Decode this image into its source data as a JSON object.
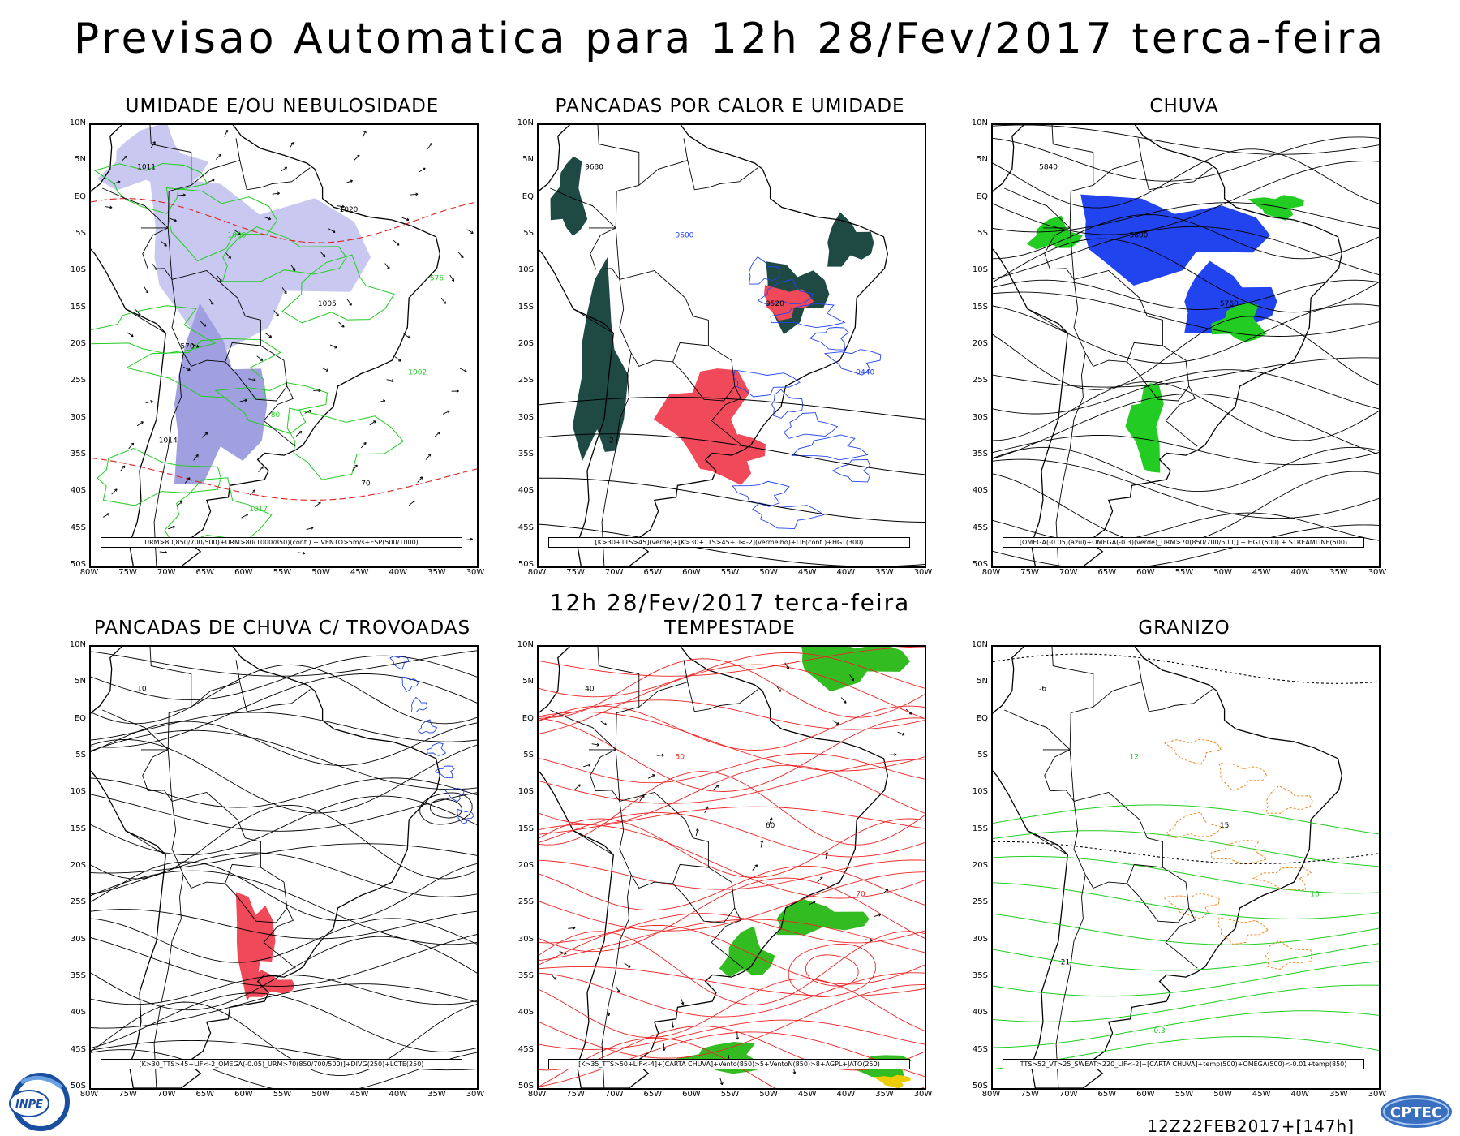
{
  "header": {
    "title": "Previsao Automatica  para 12h 28/Fev/2017 terca-feira",
    "mid_title": "12h 28/Fev/2017 terca-feira"
  },
  "footer": {
    "run_info": "12Z22FEB2017+[147h]",
    "logo_left": "INPE",
    "logo_right": "CPTEC"
  },
  "axes": {
    "lat_ticks": [
      "10N",
      "5N",
      "EQ",
      "5S",
      "10S",
      "15S",
      "20S",
      "25S",
      "30S",
      "35S",
      "40S",
      "45S",
      "50S"
    ],
    "lon_ticks": [
      "80W",
      "75W",
      "70W",
      "65W",
      "60W",
      "55W",
      "50W",
      "45W",
      "40W",
      "35W",
      "30W"
    ],
    "lat_range": [
      -50,
      10
    ],
    "lon_range": [
      -80,
      -30
    ]
  },
  "panels": [
    {
      "id": "umidade",
      "title": "UMIDADE E/OU NEBULOSIDADE",
      "legend": "URM>80(850/700/500)+URM>80(1000/850)(cont.) + VENTO>5m/s+ESP(500/1000)",
      "fill_colors": [
        "#c8c8f0",
        "#a0a0e0"
      ],
      "line_colors": [
        "#22cc22",
        "#dd2222",
        "#000000"
      ],
      "labels": [
        "1011",
        "1008",
        "1005",
        "1002",
        "1014",
        "1017",
        "1020",
        "576",
        "570",
        "80",
        "70"
      ]
    },
    {
      "id": "pancadas-calor",
      "title": "PANCADAS POR CALOR E UMIDADE",
      "legend": "[K>30+TTS>45](verde)+[K>30+TTS>45+LI<-2](vermelho)+LIF(cont.)+HGT(300)",
      "fill_colors": [
        "#1f4a44",
        "#f04a5a"
      ],
      "line_colors": [
        "#2244ee",
        "#000000"
      ],
      "labels": [
        "9680",
        "9600",
        "9520",
        "9440",
        "-2"
      ]
    },
    {
      "id": "chuva",
      "title": "CHUVA",
      "legend": "[OMEGA(-0.05)(azul)+OMEGA(-0.3)(verde)_URM>70(850/700/500)] + HGT(500) + STREAMLINE(500)",
      "fill_colors": [
        "#2244ee",
        "#22cc22"
      ],
      "line_colors": [
        "#000000"
      ],
      "labels": [
        "5840",
        "5800",
        "5760"
      ]
    },
    {
      "id": "pancadas-trovoadas",
      "title": "PANCADAS DE CHUVA C/ TROVOADAS",
      "legend": "[K>30_TTS>45+LIF<-2_OMEGA(-0.05)_URM>70(850/700/500)]+DIVG(250)+LCTE(250)",
      "fill_colors": [
        "#f04a5a",
        "#2244ee"
      ],
      "line_colors": [
        "#000000",
        "#2244ee"
      ],
      "labels": [
        "10"
      ]
    },
    {
      "id": "tempestade",
      "title": "TEMPESTADE",
      "legend": "[K>35_TTS>50+LIF<-4]+[CARTA CHUVA]+Vento(850)>5+VentoN(850)>8+AGPL+JATO(250)",
      "fill_colors": [
        "#33bb22",
        "#eecc00"
      ],
      "line_colors": [
        "#ee2222",
        "#000000"
      ],
      "labels": [
        "40",
        "50",
        "60",
        "70"
      ]
    },
    {
      "id": "granizo",
      "title": "GRANIZO",
      "legend": "TTS>52_VT>25_SWEAT>220_LIF<-2]+[CARTA CHUVA]+temp(500)+OMEGA(500)<-0.01+temp(850)",
      "fill_colors": [],
      "line_colors": [
        "#22cc22",
        "#ee8822",
        "#000000"
      ],
      "labels": [
        "-6",
        "12",
        "15",
        "18",
        "21",
        "-0.3"
      ]
    }
  ]
}
